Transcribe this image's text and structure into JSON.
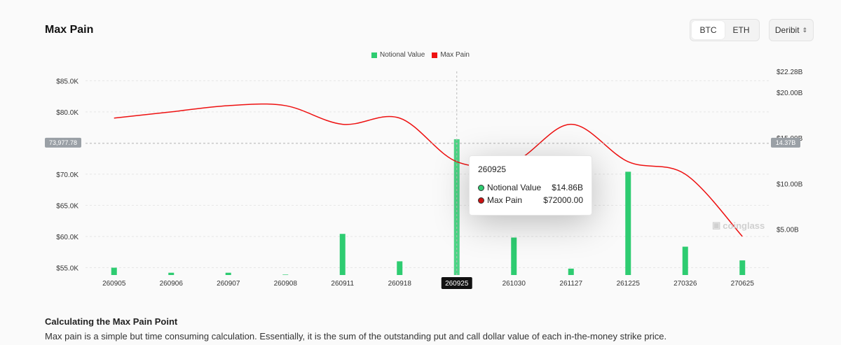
{
  "header": {
    "title": "Max Pain",
    "coin_tabs": [
      "BTC",
      "ETH"
    ],
    "active_coin": "BTC",
    "exchange": "Deribit"
  },
  "colors": {
    "bar": "#2ecc71",
    "line": "#ee1111",
    "grid": "#e6e6e6"
  },
  "tooltip": {
    "title": "260925",
    "rows": [
      {
        "label": "Notional Value",
        "value": "$14.86B",
        "color": "#2ecc71"
      },
      {
        "label": "Max Pain",
        "value": "$72000.00",
        "color": "#cc1111"
      }
    ]
  },
  "crosshair": {
    "x_label": "260925",
    "y_left_label": "73,977.78",
    "y_right_label": "14.37B"
  },
  "watermark": "coinglass",
  "chart_data": {
    "type": "bar",
    "categories": [
      "260905",
      "260906",
      "260907",
      "260908",
      "260911",
      "260918",
      "260925",
      "261030",
      "261127",
      "261225",
      "270326",
      "270625"
    ],
    "series": [
      {
        "name": "Notional Value",
        "type": "bar",
        "axis": "right",
        "values": [
          0.8,
          0.25,
          0.25,
          0.05,
          4.5,
          1.5,
          14.86,
          4.1,
          0.7,
          11.3,
          3.1,
          1.6
        ]
      },
      {
        "name": "Max Pain",
        "type": "line",
        "axis": "left",
        "values": [
          79000,
          80000,
          81000,
          81000,
          78000,
          79000,
          72000,
          72000,
          78000,
          72000,
          70000,
          60000
        ]
      }
    ],
    "y_left": {
      "ticks": [
        "$85.0K",
        "$80.0K",
        "$75.0K",
        "$70.0K",
        "$65.0K",
        "$60.0K",
        "$55.0K"
      ],
      "tick_values": [
        85000,
        80000,
        75000,
        70000,
        65000,
        60000,
        55000
      ],
      "range": [
        53800,
        86500
      ]
    },
    "y_right": {
      "ticks": [
        "$22.28B",
        "$20.00B",
        "$15.00B",
        "$10.00B",
        "$5.00B"
      ],
      "tick_values": [
        22.28,
        20,
        15,
        10,
        5
      ],
      "range": [
        0,
        22.28
      ]
    },
    "grid": true,
    "legend": "top-center"
  },
  "description": {
    "title": "Calculating the Max Pain Point",
    "text": "Max pain is a simple but time consuming calculation. Essentially, it is the sum of the outstanding put and call dollar value of each in-the-money strike price."
  }
}
